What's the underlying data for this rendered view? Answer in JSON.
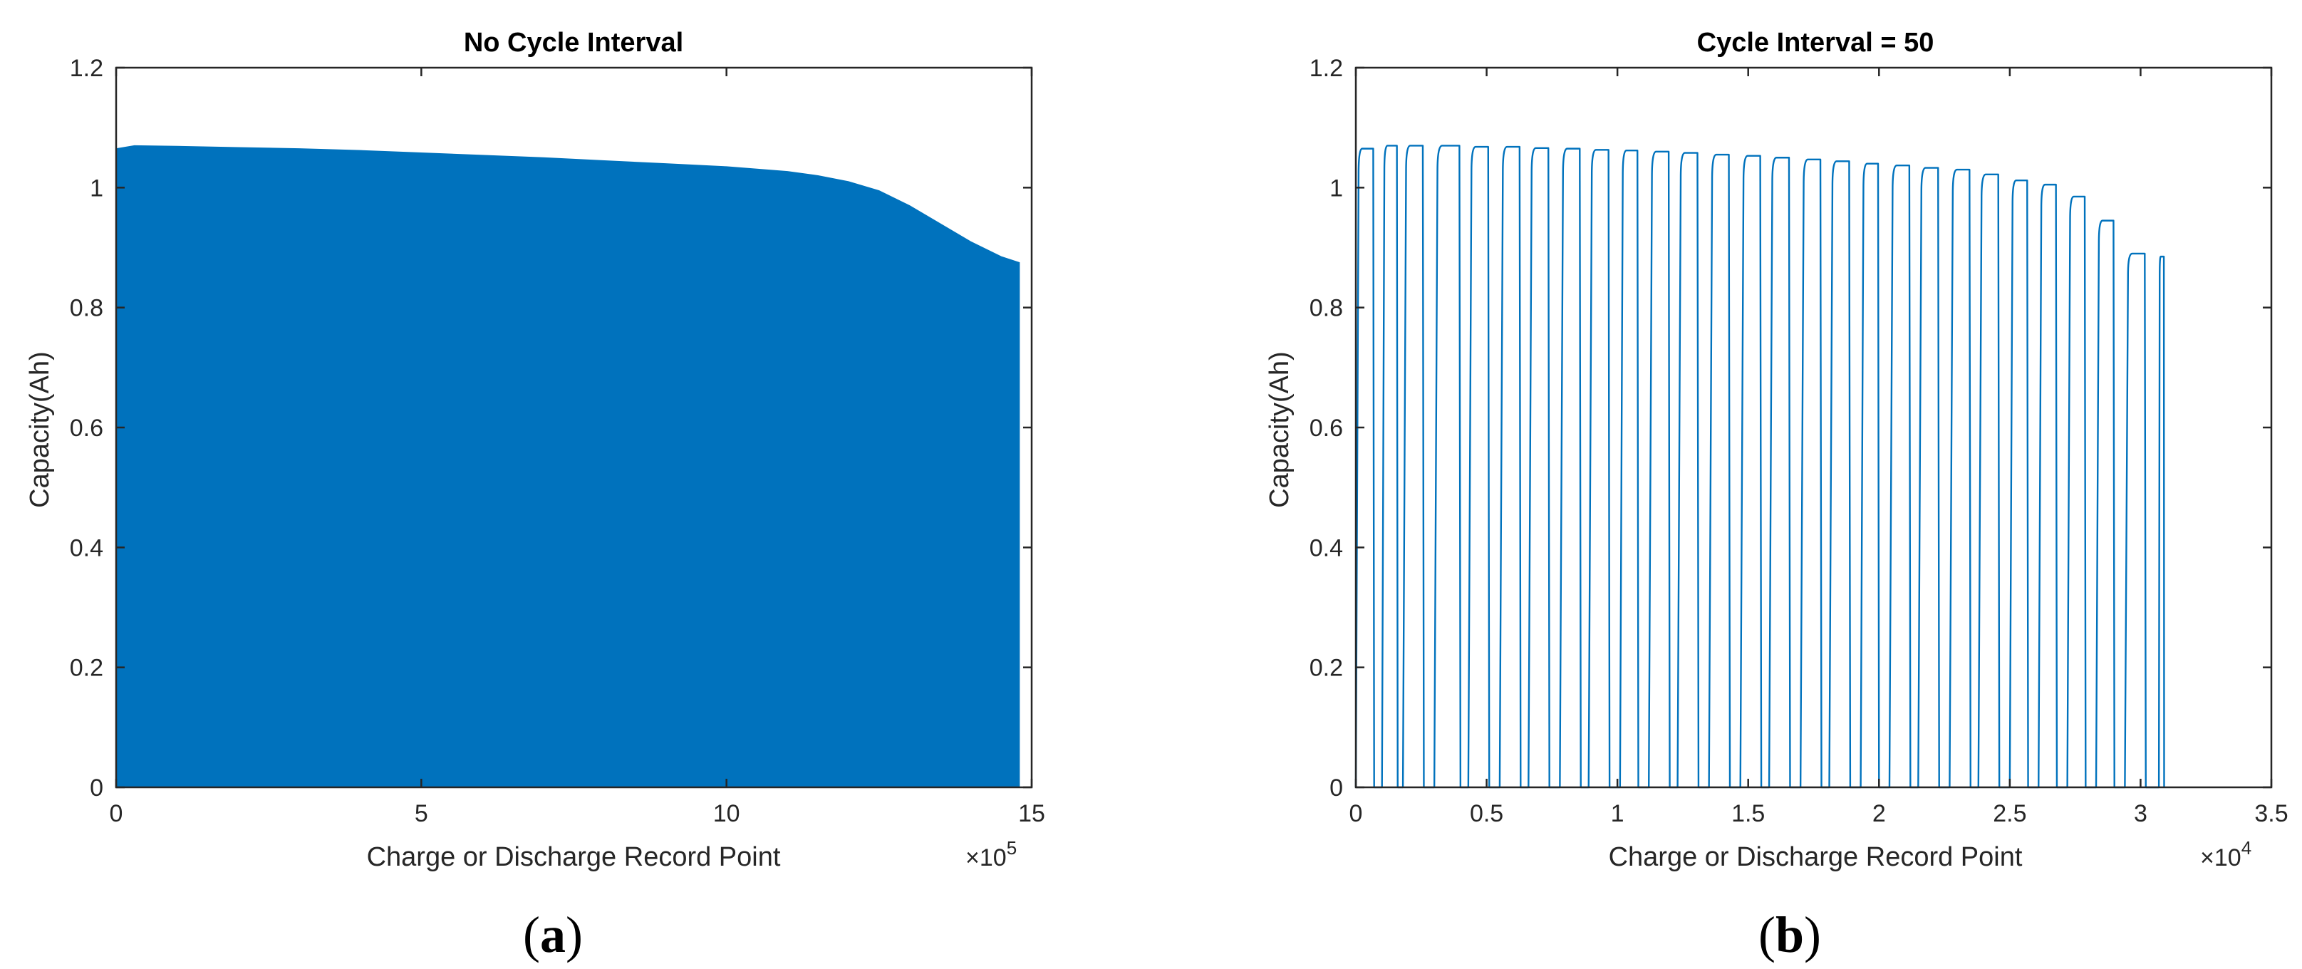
{
  "chart_data": [
    {
      "type": "area",
      "panel": "a",
      "title": "No Cycle Interval",
      "xlabel": "Charge or Discharge Record Point",
      "ylabel": "Capacity(Ah)",
      "x_exponent_label": "×10",
      "x_exponent_power": "5",
      "xlim": [
        0,
        15
      ],
      "ylim": [
        0,
        1.2
      ],
      "xticks": [
        0,
        5,
        10,
        15
      ],
      "yticks": [
        0,
        0.2,
        0.4,
        0.6,
        0.8,
        1,
        1.2
      ],
      "xtick_labels": [
        "0",
        "5",
        "10",
        "15"
      ],
      "ytick_labels": [
        "0",
        "0.2",
        "0.4",
        "0.6",
        "0.8",
        "1",
        "1.2"
      ],
      "color": "#0072BD",
      "envelope": {
        "x": [
          0,
          0.3,
          1,
          2,
          3,
          4,
          5,
          6,
          7,
          8,
          9,
          10,
          10.5,
          11,
          11.5,
          12,
          12.5,
          13,
          13.5,
          14,
          14.5,
          14.8
        ],
        "y": [
          1.065,
          1.07,
          1.069,
          1.067,
          1.065,
          1.062,
          1.058,
          1.054,
          1.05,
          1.045,
          1.04,
          1.035,
          1.031,
          1.027,
          1.02,
          1.01,
          0.995,
          0.97,
          0.94,
          0.91,
          0.885,
          0.875
        ]
      }
    },
    {
      "type": "line",
      "panel": "b",
      "title": "Cycle Interval = 50",
      "xlabel": "Charge or Discharge Record Point",
      "ylabel": "Capacity(Ah)",
      "x_exponent_label": "×10",
      "x_exponent_power": "4",
      "xlim": [
        0,
        3.5
      ],
      "ylim": [
        0,
        1.2
      ],
      "xticks": [
        0,
        0.5,
        1,
        1.5,
        2,
        2.5,
        3,
        3.5
      ],
      "yticks": [
        0,
        0.2,
        0.4,
        0.6,
        0.8,
        1,
        1.2
      ],
      "xtick_labels": [
        "0",
        "0.5",
        "1",
        "1.5",
        "2",
        "2.5",
        "3",
        "3.5"
      ],
      "ytick_labels": [
        "0",
        "0.2",
        "0.4",
        "0.6",
        "0.8",
        "1",
        "1.2"
      ],
      "color": "#0072BD",
      "pulses": [
        {
          "start": 0.0,
          "end": 0.07,
          "peak": 1.065
        },
        {
          "start": 0.1,
          "end": 0.16,
          "peak": 1.07
        },
        {
          "start": 0.18,
          "end": 0.26,
          "peak": 1.07
        },
        {
          "start": 0.3,
          "end": 0.4,
          "peak": 1.07
        },
        {
          "start": 0.43,
          "end": 0.51,
          "peak": 1.068
        },
        {
          "start": 0.55,
          "end": 0.63,
          "peak": 1.068
        },
        {
          "start": 0.66,
          "end": 0.74,
          "peak": 1.066
        },
        {
          "start": 0.78,
          "end": 0.86,
          "peak": 1.065
        },
        {
          "start": 0.89,
          "end": 0.97,
          "peak": 1.063
        },
        {
          "start": 1.01,
          "end": 1.08,
          "peak": 1.062
        },
        {
          "start": 1.12,
          "end": 1.2,
          "peak": 1.06
        },
        {
          "start": 1.23,
          "end": 1.31,
          "peak": 1.058
        },
        {
          "start": 1.35,
          "end": 1.43,
          "peak": 1.055
        },
        {
          "start": 1.47,
          "end": 1.55,
          "peak": 1.053
        },
        {
          "start": 1.58,
          "end": 1.66,
          "peak": 1.05
        },
        {
          "start": 1.7,
          "end": 1.78,
          "peak": 1.047
        },
        {
          "start": 1.81,
          "end": 1.89,
          "peak": 1.044
        },
        {
          "start": 1.93,
          "end": 2.0,
          "peak": 1.04
        },
        {
          "start": 2.04,
          "end": 2.12,
          "peak": 1.037
        },
        {
          "start": 2.15,
          "end": 2.23,
          "peak": 1.033
        },
        {
          "start": 2.27,
          "end": 2.35,
          "peak": 1.03
        },
        {
          "start": 2.38,
          "end": 2.46,
          "peak": 1.022
        },
        {
          "start": 2.5,
          "end": 2.57,
          "peak": 1.012
        },
        {
          "start": 2.61,
          "end": 2.68,
          "peak": 1.005
        },
        {
          "start": 2.72,
          "end": 2.79,
          "peak": 0.985
        },
        {
          "start": 2.83,
          "end": 2.9,
          "peak": 0.945
        },
        {
          "start": 2.94,
          "end": 3.02,
          "peak": 0.89
        },
        {
          "start": 3.07,
          "end": 3.09,
          "peak": 0.885
        }
      ]
    }
  ],
  "panel_labels": {
    "a": "a",
    "b": "b",
    "open_paren": "(",
    "close_paren": ")"
  }
}
